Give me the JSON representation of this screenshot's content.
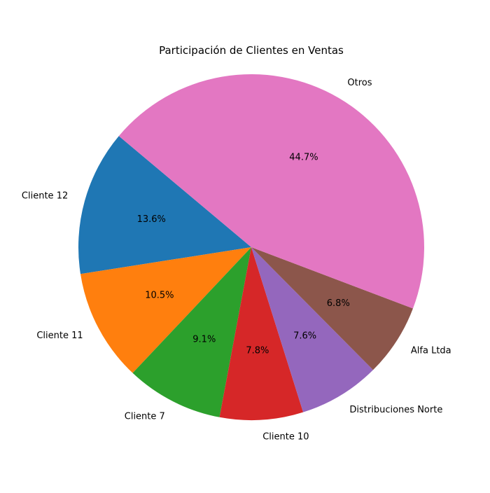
{
  "chart_data": {
    "type": "pie",
    "title": "Participación de Clientes en Ventas",
    "slices": [
      {
        "label": "Cliente 12",
        "value": 13.6,
        "pct_text": "13.6%",
        "color": "#1f77b4"
      },
      {
        "label": "Cliente 11",
        "value": 10.5,
        "pct_text": "10.5%",
        "color": "#ff7f0e"
      },
      {
        "label": "Cliente 7",
        "value": 9.1,
        "pct_text": "9.1%",
        "color": "#2ca02c"
      },
      {
        "label": "Cliente 10",
        "value": 7.8,
        "pct_text": "7.8%",
        "color": "#d62728"
      },
      {
        "label": "Distribuciones Norte",
        "value": 7.6,
        "pct_text": "7.6%",
        "color": "#9467bd"
      },
      {
        "label": "Alfa Ltda",
        "value": 6.8,
        "pct_text": "6.8%",
        "color": "#8c564b"
      },
      {
        "label": "Otros",
        "value": 44.7,
        "pct_text": "44.7%",
        "color": "#e377c2"
      }
    ],
    "start_angle_deg": 140,
    "direction": "counterclockwise",
    "legend": "none"
  }
}
